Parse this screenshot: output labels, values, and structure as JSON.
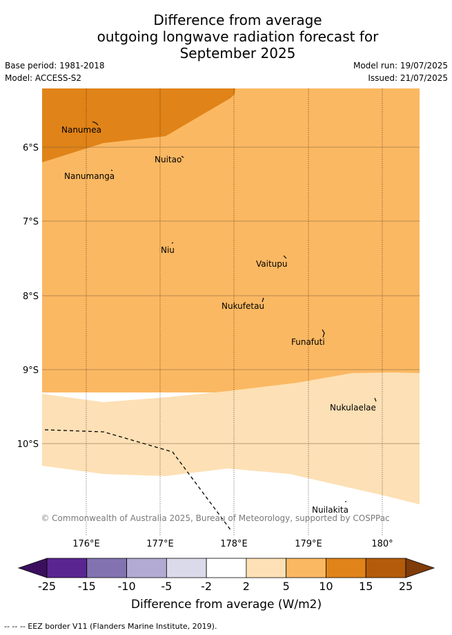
{
  "title_lines": [
    "Difference from average",
    "outgoing longwave radiation forecast for",
    "September 2025"
  ],
  "meta": {
    "base_period": "Base period: 1981-2018",
    "model": "Model: ACCESS-S2",
    "model_run": "Model run: 19/07/2025",
    "issued": "Issued: 21/07/2025"
  },
  "map": {
    "lon_labels": [
      "176°E",
      "177°E",
      "178°E",
      "179°E",
      "180°"
    ],
    "lat_labels": [
      "6°S",
      "7°S",
      "8°S",
      "9°S",
      "10°S"
    ],
    "places": [
      "Nanumea",
      "Nuitao",
      "Nanumanga",
      "Niu",
      "Vaitupu",
      "Nukufetau",
      "Funafuti",
      "Nukulaelae",
      "Nuilakita"
    ],
    "copyright": "© Commonwealth of Australia 2025, Bureau of Meteorology, supported by COSPPac"
  },
  "colorbar": {
    "ticks": [
      "-25",
      "-15",
      "-10",
      "-5",
      "-2",
      "2",
      "5",
      "10",
      "15",
      "25"
    ],
    "colors": [
      "#3b0f5e",
      "#5a2590",
      "#8273b0",
      "#b2aad3",
      "#dadaeb",
      "#ffffff",
      "#fde0b5",
      "#fbb862",
      "#e08318",
      "#b35b0a",
      "#7f3b08"
    ],
    "label": "Difference from average (W/m2)"
  },
  "legend_text": "--  --  -- EEZ border V11 (Flanders Marine Institute, 2019)."
}
